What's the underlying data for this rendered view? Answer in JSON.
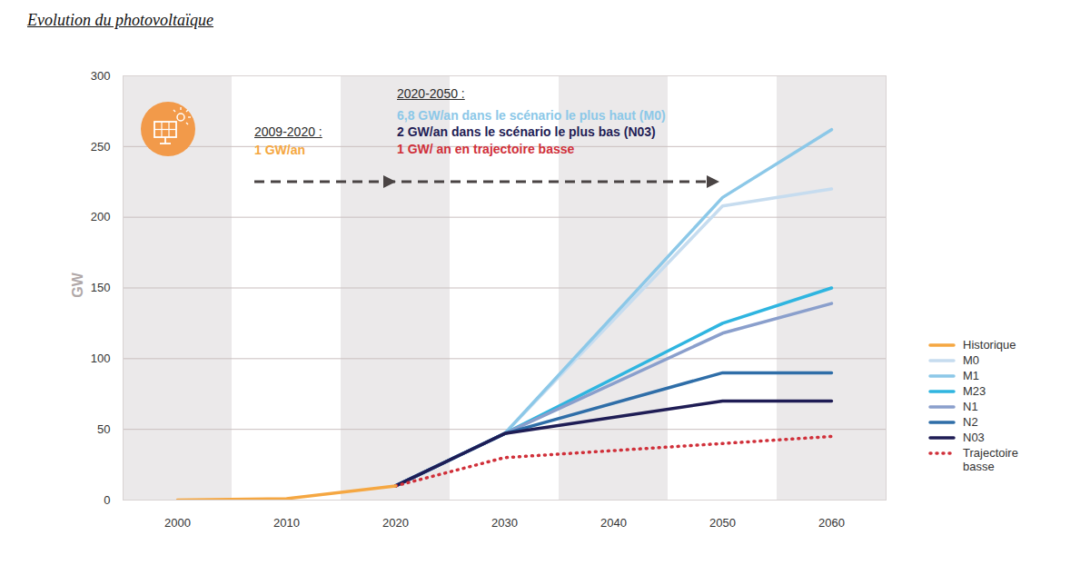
{
  "chart_data": {
    "type": "line",
    "title": "Evolution du photovoltaïque",
    "ylabel": "GW",
    "xlim": [
      1995,
      2065
    ],
    "xticks": [
      2000,
      2010,
      2020,
      2030,
      2040,
      2050,
      2060
    ],
    "ylim": [
      0,
      300
    ],
    "yticks": [
      0,
      50,
      100,
      150,
      200,
      250,
      300
    ],
    "grid": true,
    "legend": "right",
    "annotations": [
      {
        "text": "2009-2020 :",
        "color": "#2b2b2b"
      },
      {
        "text": "1 GW/an",
        "color": "#f5a742"
      },
      {
        "text": "2020-2050 :",
        "color": "#2b2b2b"
      },
      {
        "text": "6,8 GW/an dans le scénario le plus haut (M0)",
        "color": "#8cc8e8"
      },
      {
        "text": "2 GW/an dans le scénario le plus bas (N03)",
        "color": "#1f1d55"
      },
      {
        "text": "1 GW/ an en trajectoire basse",
        "color": "#d0303a"
      }
    ],
    "series": [
      {
        "name": "Historique",
        "color": "#f5a742",
        "line_style": "solid",
        "x": [
          2000,
          2010,
          2020
        ],
        "values": [
          0,
          1,
          10
        ]
      },
      {
        "name": "M0",
        "color": "#c6dcef",
        "line_style": "solid",
        "x": [
          2020,
          2030,
          2050,
          2060
        ],
        "values": [
          10,
          47,
          208,
          220
        ]
      },
      {
        "name": "M1",
        "color": "#8cc8e8",
        "line_style": "solid",
        "x": [
          2020,
          2030,
          2050,
          2060
        ],
        "values": [
          10,
          47,
          214,
          262
        ]
      },
      {
        "name": "M23",
        "color": "#2fb5e0",
        "line_style": "solid",
        "x": [
          2020,
          2030,
          2050,
          2060
        ],
        "values": [
          10,
          47,
          125,
          150
        ]
      },
      {
        "name": "N1",
        "color": "#8a9fcc",
        "line_style": "solid",
        "x": [
          2020,
          2030,
          2050,
          2060
        ],
        "values": [
          10,
          47,
          118,
          139
        ]
      },
      {
        "name": "N2",
        "color": "#2f6ea8",
        "line_style": "solid",
        "x": [
          2020,
          2030,
          2050,
          2060
        ],
        "values": [
          10,
          47,
          90,
          90
        ]
      },
      {
        "name": "N03",
        "color": "#1f1d55",
        "line_style": "solid",
        "x": [
          2020,
          2030,
          2050,
          2060
        ],
        "values": [
          10,
          47,
          70,
          70
        ]
      },
      {
        "name": "Trajectoire basse",
        "color": "#d0303a",
        "line_style": "dotted",
        "x": [
          2020,
          2030,
          2040,
          2050,
          2060
        ],
        "values": [
          10,
          30,
          35,
          40,
          45
        ]
      }
    ]
  }
}
